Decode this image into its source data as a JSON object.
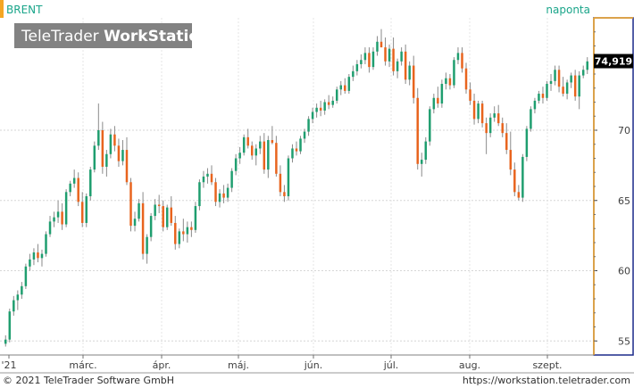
{
  "header": {
    "instrument": "BRENT",
    "period": "naponta",
    "brand_light": "TeleTrader ",
    "brand_bold": "WorkStation"
  },
  "footer": {
    "copyright": "© 2021  TeleTrader Software GmbH",
    "url": "https://workstation.teletrader.com"
  },
  "colors": {
    "up": "#1f9e6f",
    "down": "#e8641e",
    "accent": "#f5a623",
    "axis_border": "#1c2a8a",
    "last_tag_bg": "#000000"
  },
  "chart_data": {
    "type": "candlestick",
    "instrument": "BRENT",
    "period": "naponta",
    "ylim": [
      54,
      78
    ],
    "y_ticks": [
      55,
      60,
      65,
      70
    ],
    "last_value_label": "74,919",
    "last_value": 74.919,
    "x_labels": [
      "'21",
      "márc.",
      "ápr.",
      "máj.",
      "jún.",
      "júl.",
      "aug.",
      "szept."
    ],
    "grid": true,
    "candles": [
      [
        54.8,
        55.4,
        54.6,
        55.1
      ],
      [
        55.1,
        57.3,
        54.9,
        57.1
      ],
      [
        57.1,
        58.2,
        56.8,
        57.9
      ],
      [
        57.9,
        58.6,
        57.2,
        58.3
      ],
      [
        58.3,
        59.2,
        58.0,
        58.9
      ],
      [
        58.9,
        60.5,
        58.7,
        60.3
      ],
      [
        60.3,
        61.2,
        60.0,
        60.8
      ],
      [
        60.8,
        61.6,
        60.4,
        61.3
      ],
      [
        61.3,
        61.9,
        60.6,
        60.9
      ],
      [
        60.9,
        61.5,
        60.3,
        61.2
      ],
      [
        61.2,
        62.8,
        61.0,
        62.6
      ],
      [
        62.6,
        63.9,
        62.4,
        63.5
      ],
      [
        63.5,
        64.2,
        63.1,
        63.8
      ],
      [
        63.8,
        65.0,
        63.4,
        64.2
      ],
      [
        64.2,
        64.8,
        62.9,
        63.3
      ],
      [
        63.3,
        65.8,
        63.1,
        65.6
      ],
      [
        65.6,
        66.4,
        65.3,
        66.2
      ],
      [
        66.2,
        67.2,
        65.9,
        66.6
      ],
      [
        66.6,
        67.0,
        64.6,
        64.9
      ],
      [
        64.9,
        65.6,
        63.1,
        63.4
      ],
      [
        63.4,
        65.5,
        63.1,
        65.3
      ],
      [
        65.3,
        67.4,
        65.0,
        67.2
      ],
      [
        67.2,
        69.2,
        67.0,
        68.9
      ],
      [
        68.9,
        71.9,
        68.6,
        70.0
      ],
      [
        70.0,
        70.6,
        66.9,
        67.4
      ],
      [
        67.4,
        68.6,
        66.7,
        68.3
      ],
      [
        68.3,
        70.1,
        68.0,
        69.7
      ],
      [
        69.7,
        70.3,
        68.5,
        68.9
      ],
      [
        68.9,
        69.4,
        67.4,
        67.8
      ],
      [
        67.8,
        69.3,
        67.5,
        68.6
      ],
      [
        68.6,
        69.5,
        66.1,
        66.3
      ],
      [
        66.3,
        66.6,
        62.8,
        63.2
      ],
      [
        63.2,
        64.2,
        62.8,
        63.7
      ],
      [
        63.7,
        65.1,
        63.5,
        64.8
      ],
      [
        64.8,
        65.6,
        60.8,
        61.2
      ],
      [
        61.2,
        62.6,
        60.5,
        62.4
      ],
      [
        62.4,
        64.1,
        62.1,
        63.9
      ],
      [
        63.9,
        65.1,
        63.6,
        64.7
      ],
      [
        64.7,
        65.4,
        64.1,
        64.6
      ],
      [
        64.6,
        65.0,
        62.8,
        63.1
      ],
      [
        63.1,
        64.7,
        62.9,
        64.5
      ],
      [
        64.5,
        65.3,
        63.2,
        63.4
      ],
      [
        63.4,
        63.9,
        61.5,
        61.9
      ],
      [
        61.9,
        63.0,
        61.6,
        62.8
      ],
      [
        62.8,
        63.7,
        62.1,
        62.6
      ],
      [
        62.6,
        63.5,
        62.0,
        63.1
      ],
      [
        63.1,
        63.5,
        62.4,
        62.9
      ],
      [
        62.9,
        64.9,
        62.7,
        64.6
      ],
      [
        64.6,
        66.5,
        64.3,
        66.3
      ],
      [
        66.3,
        67.1,
        65.9,
        66.7
      ],
      [
        66.7,
        67.3,
        66.2,
        66.9
      ],
      [
        66.9,
        67.5,
        66.1,
        66.3
      ],
      [
        66.3,
        66.6,
        64.6,
        64.9
      ],
      [
        64.9,
        65.8,
        64.5,
        65.5
      ],
      [
        65.5,
        66.1,
        64.8,
        65.2
      ],
      [
        65.2,
        66.2,
        64.9,
        65.9
      ],
      [
        65.9,
        67.3,
        65.6,
        67.1
      ],
      [
        67.1,
        68.3,
        66.8,
        68.0
      ],
      [
        68.0,
        68.8,
        67.6,
        68.4
      ],
      [
        68.4,
        69.7,
        68.2,
        69.5
      ],
      [
        69.5,
        70.1,
        68.7,
        68.9
      ],
      [
        68.9,
        69.2,
        67.9,
        68.2
      ],
      [
        68.2,
        69.0,
        67.5,
        68.7
      ],
      [
        68.7,
        69.6,
        68.3,
        69.2
      ],
      [
        69.2,
        69.8,
        66.9,
        67.2
      ],
      [
        67.2,
        69.6,
        66.6,
        69.3
      ],
      [
        69.3,
        70.3,
        69.0,
        69.1
      ],
      [
        69.1,
        69.6,
        66.7,
        66.9
      ],
      [
        66.9,
        67.5,
        65.3,
        65.6
      ],
      [
        65.6,
        66.1,
        64.9,
        65.3
      ],
      [
        65.3,
        68.2,
        65.0,
        68.0
      ],
      [
        68.0,
        69.0,
        67.7,
        68.7
      ],
      [
        68.7,
        69.2,
        68.2,
        68.5
      ],
      [
        68.5,
        69.6,
        68.3,
        69.4
      ],
      [
        69.4,
        70.1,
        69.1,
        69.9
      ],
      [
        69.9,
        71.0,
        69.6,
        70.8
      ],
      [
        70.8,
        71.6,
        70.5,
        71.3
      ],
      [
        71.3,
        71.9,
        70.9,
        71.6
      ],
      [
        71.6,
        72.1,
        71.0,
        71.4
      ],
      [
        71.4,
        72.2,
        71.1,
        72.0
      ],
      [
        72.0,
        72.5,
        71.5,
        71.8
      ],
      [
        71.8,
        72.4,
        71.6,
        72.1
      ],
      [
        72.1,
        73.1,
        71.9,
        72.9
      ],
      [
        72.9,
        73.5,
        72.5,
        73.2
      ],
      [
        73.2,
        73.7,
        72.6,
        72.8
      ],
      [
        72.8,
        74.0,
        72.6,
        73.8
      ],
      [
        73.8,
        74.6,
        73.5,
        74.2
      ],
      [
        74.2,
        75.0,
        73.9,
        74.7
      ],
      [
        74.7,
        75.4,
        74.4,
        75.0
      ],
      [
        75.0,
        75.9,
        74.7,
        75.5
      ],
      [
        75.5,
        75.9,
        74.1,
        74.5
      ],
      [
        74.5,
        75.9,
        74.3,
        75.6
      ],
      [
        75.6,
        76.7,
        75.3,
        76.3
      ],
      [
        76.3,
        77.2,
        75.9,
        75.9
      ],
      [
        75.9,
        76.6,
        74.6,
        74.9
      ],
      [
        74.9,
        76.1,
        74.5,
        75.8
      ],
      [
        75.8,
        76.6,
        73.9,
        74.2
      ],
      [
        74.2,
        75.1,
        73.7,
        74.9
      ],
      [
        74.9,
        75.9,
        74.6,
        75.6
      ],
      [
        75.6,
        76.1,
        73.3,
        73.6
      ],
      [
        73.6,
        74.9,
        73.2,
        74.6
      ],
      [
        74.6,
        75.3,
        71.9,
        72.3
      ],
      [
        72.3,
        73.0,
        67.2,
        67.6
      ],
      [
        67.6,
        68.4,
        66.7,
        67.9
      ],
      [
        67.9,
        69.5,
        67.6,
        69.2
      ],
      [
        69.2,
        71.7,
        68.9,
        71.5
      ],
      [
        71.5,
        72.6,
        71.2,
        72.3
      ],
      [
        72.3,
        73.1,
        71.6,
        71.9
      ],
      [
        71.9,
        73.6,
        71.6,
        73.3
      ],
      [
        73.3,
        74.1,
        72.9,
        73.7
      ],
      [
        73.7,
        74.0,
        72.9,
        73.2
      ],
      [
        73.2,
        75.2,
        73.0,
        75.0
      ],
      [
        75.0,
        75.9,
        74.7,
        75.5
      ],
      [
        75.5,
        75.9,
        74.1,
        74.4
      ],
      [
        74.4,
        74.8,
        72.6,
        72.9
      ],
      [
        72.9,
        73.4,
        71.8,
        72.1
      ],
      [
        72.1,
        72.6,
        70.4,
        70.8
      ],
      [
        70.8,
        72.1,
        70.5,
        71.9
      ],
      [
        71.9,
        72.1,
        70.2,
        70.5
      ],
      [
        70.5,
        70.9,
        68.3,
        69.8
      ],
      [
        69.8,
        71.2,
        69.5,
        70.9
      ],
      [
        70.9,
        71.7,
        70.6,
        71.2
      ],
      [
        71.2,
        71.8,
        70.3,
        70.5
      ],
      [
        70.5,
        70.9,
        69.5,
        69.8
      ],
      [
        69.8,
        70.5,
        68.3,
        68.6
      ],
      [
        68.6,
        69.9,
        66.8,
        67.2
      ],
      [
        67.2,
        67.7,
        65.3,
        65.6
      ],
      [
        65.6,
        66.1,
        65.0,
        65.2
      ],
      [
        65.2,
        68.3,
        64.9,
        68.1
      ],
      [
        68.1,
        70.3,
        67.8,
        70.1
      ],
      [
        70.1,
        71.7,
        69.9,
        71.5
      ],
      [
        71.5,
        72.3,
        71.2,
        72.1
      ],
      [
        72.1,
        72.8,
        71.9,
        72.6
      ],
      [
        72.6,
        73.1,
        71.9,
        72.3
      ],
      [
        72.3,
        73.5,
        72.1,
        73.3
      ],
      [
        73.3,
        74.0,
        72.8,
        73.5
      ],
      [
        73.5,
        74.6,
        73.2,
        74.3
      ],
      [
        74.3,
        74.6,
        72.7,
        73.1
      ],
      [
        73.1,
        73.8,
        72.4,
        72.6
      ],
      [
        72.6,
        73.6,
        72.2,
        73.4
      ],
      [
        73.4,
        74.1,
        73.0,
        73.9
      ],
      [
        73.9,
        74.3,
        72.1,
        72.4
      ],
      [
        72.4,
        74.2,
        71.5,
        73.9
      ],
      [
        73.9,
        74.6,
        73.7,
        74.3
      ],
      [
        74.3,
        75.2,
        74.0,
        74.9
      ]
    ]
  }
}
